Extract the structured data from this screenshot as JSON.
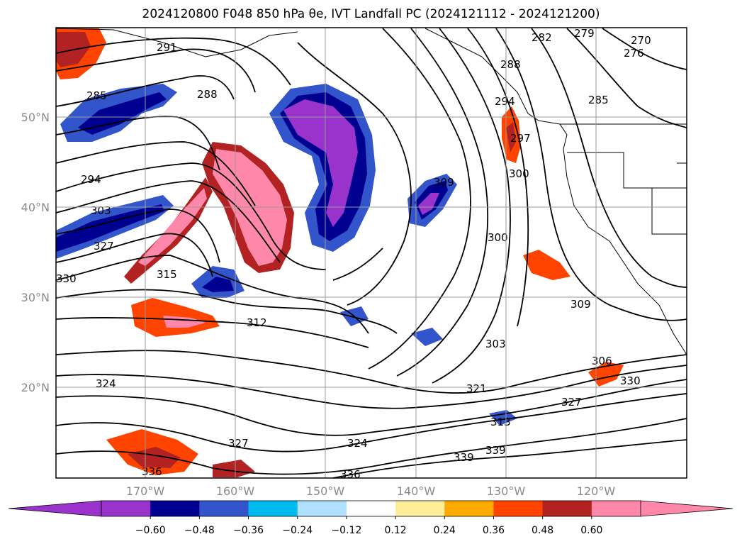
{
  "title": "2024120800 F048 850 hPa θe, IVT Landfall PC (2024121112 - 2024121200)",
  "map": {
    "lon_labels": [
      "170°W",
      "160°W",
      "150°W",
      "140°W",
      "130°W",
      "120°W"
    ],
    "lat_labels": [
      "50°N",
      "40°N",
      "30°N",
      "20°N"
    ],
    "contour_labels": [
      "291",
      "285",
      "288",
      "294",
      "303",
      "327",
      "330",
      "315",
      "312",
      "324",
      "327",
      "336",
      "339",
      "339",
      "336",
      "324",
      "321",
      "313",
      "309",
      "306",
      "330",
      "327",
      "303",
      "300",
      "300",
      "309",
      "297",
      "294",
      "288",
      "282",
      "279",
      "276",
      "270",
      "285"
    ]
  },
  "colorbar": {
    "tick_labels": [
      "−0.60",
      "−0.48",
      "−0.36",
      "−0.24",
      "−0.12",
      "0.12",
      "0.24",
      "0.36",
      "0.48",
      "0.60"
    ],
    "colors": [
      "#9933cc",
      "#000090",
      "#3355cc",
      "#00bbee",
      "#b0e0ff",
      "#ffffff",
      "#ffee99",
      "#ffaa00",
      "#ff4400",
      "#b22222",
      "#ff88aa"
    ],
    "extend_colors": [
      "#9933cc",
      "#ff88aa"
    ]
  }
}
